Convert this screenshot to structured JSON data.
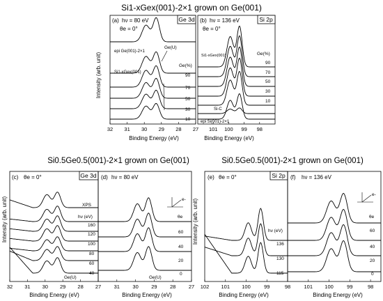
{
  "figure": {
    "top_title": "Si1-xGex(001)-2×1 grown on Ge(001)",
    "bottom_left_title": "Si0.5Ge0.5(001)-2×1 grown on Ge(001)",
    "bottom_right_title": "Si0.5Ge0.5(001)-2×1 grown on Ge(001)",
    "ylabel": "Intensity (arb. unit)",
    "xlabel": "Binding Energy (eV)"
  },
  "chart_data": [
    {
      "panel": "(a)",
      "type": "line",
      "core_level": "Ge 3d",
      "params": [
        "hν = 80 eV",
        "θe = 0°"
      ],
      "xlim": [
        32,
        27
      ],
      "x_ticks": [
        32,
        31,
        30,
        29,
        28,
        27
      ],
      "peaks": [
        29.9,
        29.3
      ],
      "series": [
        {
          "name": "epi Ge(001)-2×1"
        },
        {
          "name": "90"
        },
        {
          "name": "70"
        },
        {
          "name": "50"
        },
        {
          "name": "30"
        },
        {
          "name": "10"
        }
      ],
      "annotations": [
        "Si1-xGex(001)",
        "Ge(%)",
        "Ge(U)"
      ]
    },
    {
      "panel": "(b)",
      "type": "line",
      "core_level": "Si 2p",
      "params": [
        "hν = 136 eV",
        "θe = 0°"
      ],
      "xlim": [
        102,
        97
      ],
      "x_ticks": [
        101,
        100,
        99,
        98
      ],
      "peaks": [
        99.9,
        99.3
      ],
      "series": [
        {
          "name": "90"
        },
        {
          "name": "70"
        },
        {
          "name": "50"
        },
        {
          "name": "30"
        },
        {
          "name": "10"
        },
        {
          "name": "Si-C"
        },
        {
          "name": "epi Si(001)-2×1"
        }
      ],
      "annotations": [
        "Si1-xGex(001)",
        "Ge(%)"
      ]
    },
    {
      "panel": "(c)",
      "type": "line",
      "core_level": "Ge 3d",
      "params": [
        "θe = 0°"
      ],
      "xlim": [
        32,
        27
      ],
      "x_ticks": [
        32,
        31,
        30,
        29,
        28,
        27
      ],
      "peaks": [
        29.9,
        29.3
      ],
      "series": [
        {
          "name": "XPS"
        },
        {
          "name": "160"
        },
        {
          "name": "120"
        },
        {
          "name": "100"
        },
        {
          "name": "80"
        },
        {
          "name": "60"
        },
        {
          "name": "40"
        }
      ],
      "annotations": [
        "hν (eV)",
        "Ge(U)"
      ]
    },
    {
      "panel": "(d)",
      "type": "line",
      "core_level": "",
      "params": [
        "hν = 80 eV"
      ],
      "xlim": [
        32,
        27
      ],
      "x_ticks": [
        31,
        30,
        29,
        28,
        27
      ],
      "peaks": [
        29.9,
        29.3
      ],
      "series": [
        {
          "name": "60"
        },
        {
          "name": "40"
        },
        {
          "name": "20"
        },
        {
          "name": "0"
        }
      ],
      "annotations": [
        "θe",
        "Ge(U)",
        "e-"
      ]
    },
    {
      "panel": "(e)",
      "type": "line",
      "core_level": "Si 2p",
      "params": [
        "θe = 0°"
      ],
      "xlim": [
        102,
        98
      ],
      "x_ticks": [
        102,
        101,
        100,
        99,
        98
      ],
      "peaks": [
        99.9,
        99.3
      ],
      "series": [
        {
          "name": "136"
        },
        {
          "name": "130"
        },
        {
          "name": "115"
        }
      ],
      "annotations": [
        "hν (eV)"
      ]
    },
    {
      "panel": "(f)",
      "type": "line",
      "core_level": "",
      "params": [
        "hν = 136 eV"
      ],
      "xlim": [
        102,
        97.5
      ],
      "x_ticks": [
        101,
        100,
        99,
        98
      ],
      "peaks": [
        99.9,
        99.3
      ],
      "series": [
        {
          "name": "60"
        },
        {
          "name": "40"
        },
        {
          "name": "20"
        },
        {
          "name": "0"
        }
      ],
      "annotations": [
        "θe",
        "e-"
      ]
    }
  ]
}
